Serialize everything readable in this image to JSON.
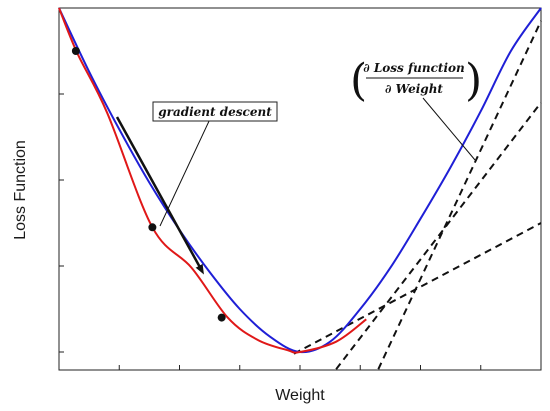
{
  "chart_data": {
    "type": "line",
    "title": "",
    "xlabel": "Weight",
    "ylabel": "Loss Function",
    "xlim": [
      0,
      8
    ],
    "ylim": [
      0,
      4
    ],
    "grid": false,
    "x_tick_values": [
      0,
      1,
      2,
      3,
      4,
      5,
      6,
      7,
      8
    ],
    "y_tick_values": [
      0,
      1,
      2,
      3,
      4
    ],
    "series": [
      {
        "color": "#1f1fd6",
        "x": [
          0,
          0.5,
          1,
          1.5,
          2,
          2.5,
          3,
          3.5,
          4,
          4.5,
          5,
          5.5,
          6,
          6.5,
          7,
          7.5,
          8
        ],
        "y": [
          4.0,
          3.26,
          2.59,
          1.97,
          1.42,
          0.93,
          0.5,
          0.18,
          0.0,
          0.12,
          0.5,
          0.98,
          1.55,
          2.15,
          2.8,
          3.5,
          4.0
        ]
      },
      {
        "color": "#e01818",
        "x": [
          0,
          0.3,
          0.8,
          1.55,
          2.2,
          2.8,
          3.3,
          3.8,
          4.0,
          4.6,
          5.1
        ],
        "y": [
          4.0,
          3.48,
          2.78,
          1.45,
          0.98,
          0.4,
          0.14,
          0.02,
          0.0,
          0.12,
          0.38
        ]
      }
    ],
    "points": [
      {
        "x": 0.28,
        "y": 3.5
      },
      {
        "x": 1.55,
        "y": 1.45
      },
      {
        "x": 2.7,
        "y": 0.4
      }
    ],
    "tangent_lines": [
      {
        "x": [
          3.9,
          8.0
        ],
        "y": [
          -0.02,
          1.5
        ]
      },
      {
        "x": [
          4.6,
          8.0
        ],
        "y": [
          -0.2,
          2.9
        ]
      },
      {
        "x": [
          5.3,
          8.0
        ],
        "y": [
          -0.2,
          3.85
        ]
      }
    ],
    "annotations": {
      "gradient_descent": "gradient descent",
      "derivative_numerator": "∂ Loss function",
      "derivative_denominator": "∂ Weight"
    }
  },
  "colors": {
    "blue_curve": "#1f1fd6",
    "red_path": "#e01818",
    "tangent": "#111111"
  }
}
